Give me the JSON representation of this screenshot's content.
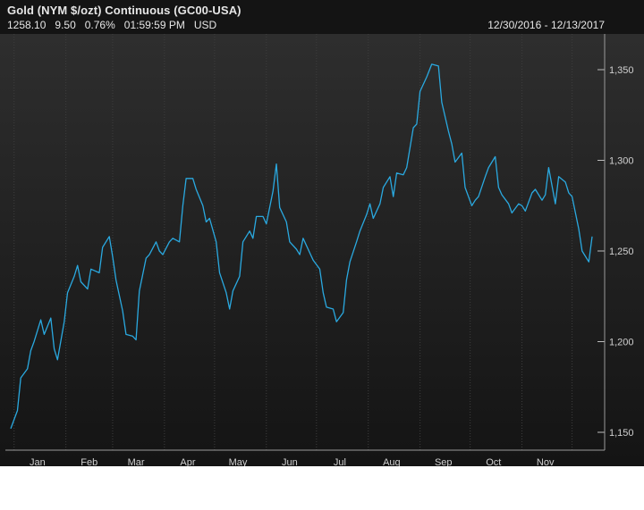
{
  "header": {
    "title": "Gold (NYM $/ozt) Continuous (GC00-USA)",
    "last": "1258.10",
    "change": "9.50",
    "change_pct": "0.76%",
    "time": "01:59:59 PM",
    "currency": "USD",
    "date_range": "12/30/2016 - 12/13/2017"
  },
  "colors": {
    "line": "#2aa9e0",
    "background": "#1c1c1c",
    "grid": "#3a3a3a"
  },
  "chart_data": {
    "type": "line",
    "title": "Gold (NYM $/ozt) Continuous (GC00-USA)",
    "x_tick_labels": [
      "Jan",
      "Feb",
      "Mar",
      "Apr",
      "May",
      "Jun",
      "Jul",
      "Aug",
      "Sep",
      "Oct",
      "Nov"
    ],
    "y_tick_labels": [
      "1,150",
      "1,200",
      "1,250",
      "1,300",
      "1,350"
    ],
    "y_ticks": [
      1150,
      1200,
      1250,
      1300,
      1350
    ],
    "ylim": [
      1145,
      1370
    ],
    "xlim": [
      "2016-12-30",
      "2017-12-13"
    ],
    "grid": "vertical-dotted",
    "series": [
      {
        "values": [
          [
            "2016-12-30",
            1152
          ],
          [
            "2017-01-03",
            1162
          ],
          [
            "2017-01-05",
            1180
          ],
          [
            "2017-01-09",
            1185
          ],
          [
            "2017-01-11",
            1195
          ],
          [
            "2017-01-13",
            1200
          ],
          [
            "2017-01-17",
            1212
          ],
          [
            "2017-01-19",
            1204
          ],
          [
            "2017-01-23",
            1213
          ],
          [
            "2017-01-25",
            1196
          ],
          [
            "2017-01-27",
            1190
          ],
          [
            "2017-01-31",
            1211
          ],
          [
            "2017-02-02",
            1227
          ],
          [
            "2017-02-06",
            1236
          ],
          [
            "2017-02-08",
            1242
          ],
          [
            "2017-02-10",
            1233
          ],
          [
            "2017-02-14",
            1229
          ],
          [
            "2017-02-16",
            1240
          ],
          [
            "2017-02-21",
            1238
          ],
          [
            "2017-02-23",
            1252
          ],
          [
            "2017-02-27",
            1258
          ],
          [
            "2017-03-01",
            1247
          ],
          [
            "2017-03-03",
            1234
          ],
          [
            "2017-03-07",
            1217
          ],
          [
            "2017-03-09",
            1204
          ],
          [
            "2017-03-13",
            1203
          ],
          [
            "2017-03-15",
            1201
          ],
          [
            "2017-03-17",
            1228
          ],
          [
            "2017-03-21",
            1246
          ],
          [
            "2017-03-23",
            1248
          ],
          [
            "2017-03-27",
            1255
          ],
          [
            "2017-03-29",
            1250
          ],
          [
            "2017-03-31",
            1248
          ],
          [
            "2017-04-04",
            1255
          ],
          [
            "2017-04-06",
            1257
          ],
          [
            "2017-04-10",
            1255
          ],
          [
            "2017-04-12",
            1275
          ],
          [
            "2017-04-14",
            1290
          ],
          [
            "2017-04-18",
            1290
          ],
          [
            "2017-04-20",
            1284
          ],
          [
            "2017-04-24",
            1275
          ],
          [
            "2017-04-26",
            1266
          ],
          [
            "2017-04-28",
            1268
          ],
          [
            "2017-05-02",
            1255
          ],
          [
            "2017-05-04",
            1238
          ],
          [
            "2017-05-08",
            1227
          ],
          [
            "2017-05-10",
            1218
          ],
          [
            "2017-05-12",
            1228
          ],
          [
            "2017-05-16",
            1236
          ],
          [
            "2017-05-18",
            1255
          ],
          [
            "2017-05-22",
            1261
          ],
          [
            "2017-05-24",
            1257
          ],
          [
            "2017-05-26",
            1269
          ],
          [
            "2017-05-30",
            1269
          ],
          [
            "2017-06-01",
            1265
          ],
          [
            "2017-06-05",
            1283
          ],
          [
            "2017-06-07",
            1298
          ],
          [
            "2017-06-09",
            1274
          ],
          [
            "2017-06-13",
            1266
          ],
          [
            "2017-06-15",
            1255
          ],
          [
            "2017-06-19",
            1251
          ],
          [
            "2017-06-21",
            1248
          ],
          [
            "2017-06-23",
            1257
          ],
          [
            "2017-06-27",
            1249
          ],
          [
            "2017-06-29",
            1245
          ],
          [
            "2017-07-03",
            1240
          ],
          [
            "2017-07-05",
            1227
          ],
          [
            "2017-07-07",
            1219
          ],
          [
            "2017-07-11",
            1218
          ],
          [
            "2017-07-13",
            1211
          ],
          [
            "2017-07-17",
            1216
          ],
          [
            "2017-07-19",
            1234
          ],
          [
            "2017-07-21",
            1244
          ],
          [
            "2017-07-25",
            1255
          ],
          [
            "2017-07-27",
            1261
          ],
          [
            "2017-07-31",
            1270
          ],
          [
            "2017-08-02",
            1276
          ],
          [
            "2017-08-04",
            1268
          ],
          [
            "2017-08-08",
            1276
          ],
          [
            "2017-08-10",
            1285
          ],
          [
            "2017-08-14",
            1291
          ],
          [
            "2017-08-16",
            1280
          ],
          [
            "2017-08-18",
            1293
          ],
          [
            "2017-08-22",
            1292
          ],
          [
            "2017-08-24",
            1296
          ],
          [
            "2017-08-28",
            1318
          ],
          [
            "2017-08-30",
            1320
          ],
          [
            "2017-09-01",
            1338
          ],
          [
            "2017-09-05",
            1346
          ],
          [
            "2017-09-08",
            1353
          ],
          [
            "2017-09-12",
            1352
          ],
          [
            "2017-09-14",
            1332
          ],
          [
            "2017-09-18",
            1316
          ],
          [
            "2017-09-20",
            1309
          ],
          [
            "2017-09-22",
            1299
          ],
          [
            "2017-09-26",
            1304
          ],
          [
            "2017-09-28",
            1285
          ],
          [
            "2017-10-02",
            1275
          ],
          [
            "2017-10-04",
            1278
          ],
          [
            "2017-10-06",
            1280
          ],
          [
            "2017-10-10",
            1291
          ],
          [
            "2017-10-12",
            1296
          ],
          [
            "2017-10-16",
            1302
          ],
          [
            "2017-10-18",
            1285
          ],
          [
            "2017-10-20",
            1281
          ],
          [
            "2017-10-24",
            1276
          ],
          [
            "2017-10-26",
            1271
          ],
          [
            "2017-10-30",
            1276
          ],
          [
            "2017-11-01",
            1275
          ],
          [
            "2017-11-03",
            1272
          ],
          [
            "2017-11-07",
            1282
          ],
          [
            "2017-11-09",
            1284
          ],
          [
            "2017-11-13",
            1278
          ],
          [
            "2017-11-15",
            1281
          ],
          [
            "2017-11-17",
            1296
          ],
          [
            "2017-11-21",
            1276
          ],
          [
            "2017-11-23",
            1291
          ],
          [
            "2017-11-27",
            1288
          ],
          [
            "2017-11-29",
            1282
          ],
          [
            "2017-12-01",
            1280
          ],
          [
            "2017-12-05",
            1262
          ],
          [
            "2017-12-07",
            1250
          ],
          [
            "2017-12-11",
            1244
          ],
          [
            "2017-12-13",
            1258
          ]
        ]
      }
    ]
  }
}
